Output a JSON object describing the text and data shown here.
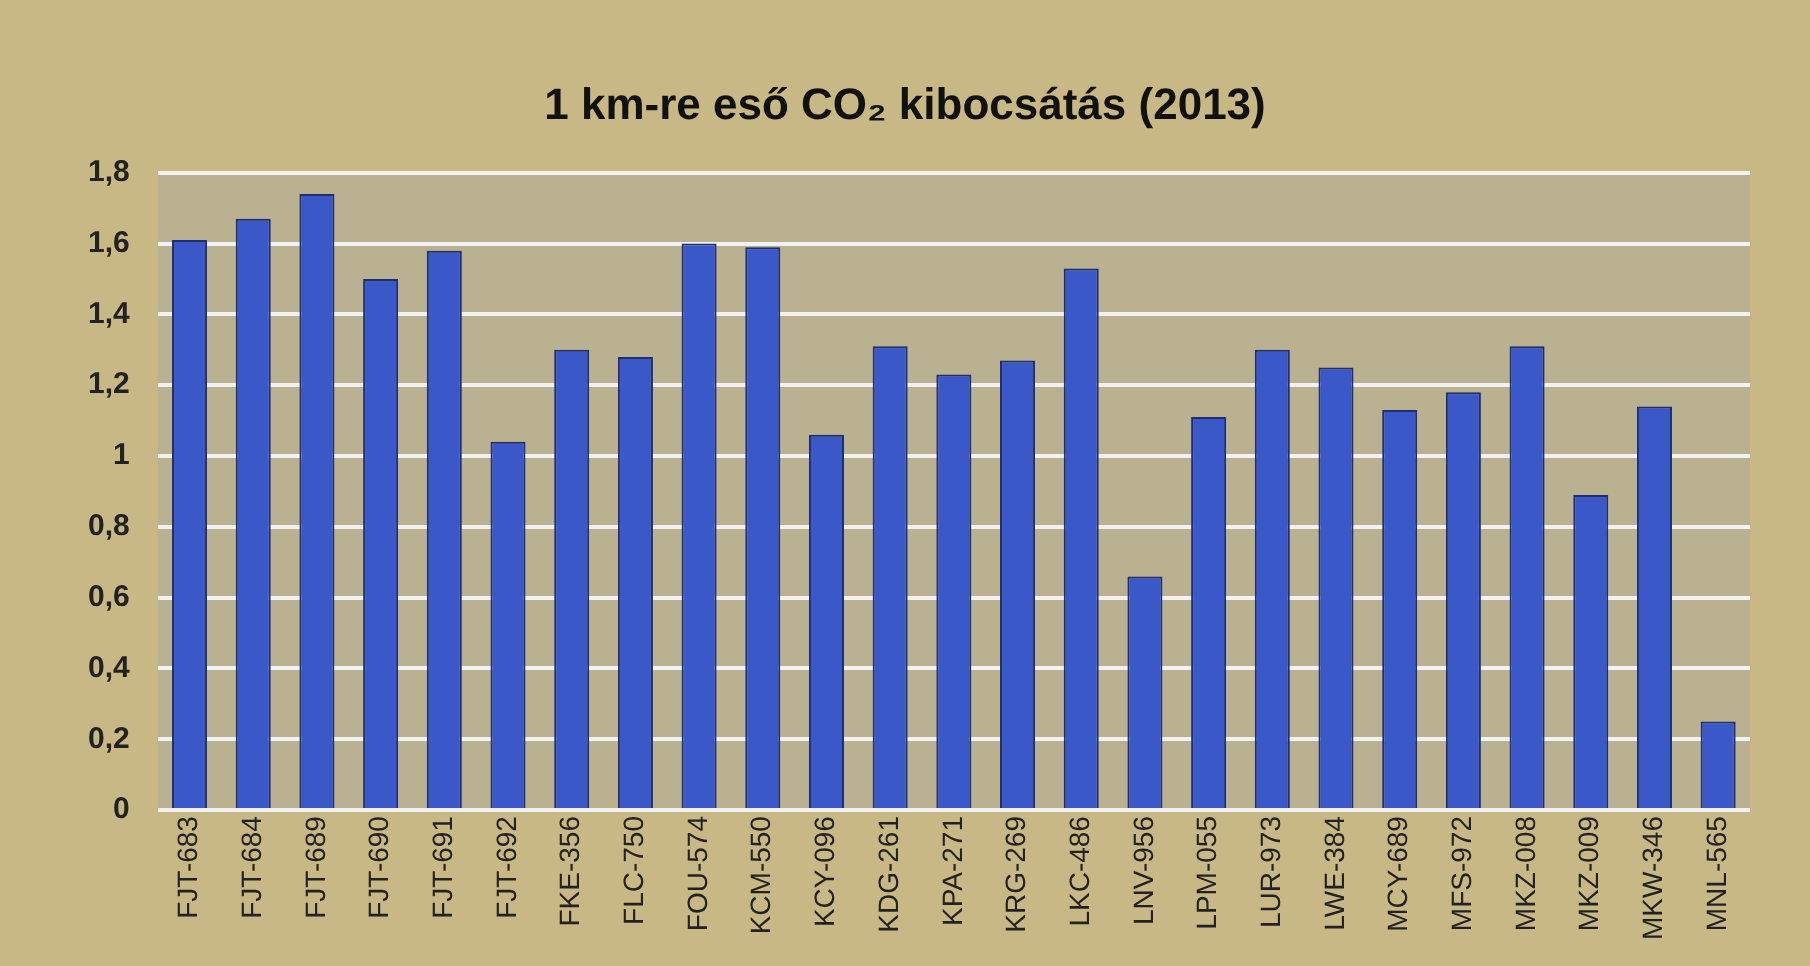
{
  "chart_data": {
    "type": "bar",
    "title": "1 km-re eső CO₂ kibocsátás (2013)",
    "categories": [
      "FJT-683",
      "FJT-684",
      "FJT-689",
      "FJT-690",
      "FJT-691",
      "FJT-692",
      "FKE-356",
      "FLC-750",
      "FOU-574",
      "KCM-550",
      "KCY-096",
      "KDG-261",
      "KPA-271",
      "KRG-269",
      "LKC-486",
      "LNV-956",
      "LPM-055",
      "LUR-973",
      "LWE-384",
      "MCY-689",
      "MFS-972",
      "MKZ-008",
      "MKZ-009",
      "MKW-346",
      "MNL-565"
    ],
    "values": [
      1.61,
      1.67,
      1.74,
      1.5,
      1.58,
      1.04,
      1.3,
      1.28,
      1.6,
      1.59,
      1.06,
      1.31,
      1.23,
      1.27,
      1.53,
      0.66,
      1.11,
      1.3,
      1.25,
      1.13,
      1.18,
      1.31,
      0.89,
      1.14,
      0.25
    ],
    "color": "#3a58c8",
    "ylim": [
      0,
      1.8
    ],
    "yticks": [
      0,
      {
        "value": 0.2,
        "label": "0,2"
      },
      {
        "value": 0.4,
        "label": "0,4"
      },
      {
        "value": 0.6,
        "label": "0,6"
      },
      {
        "value": 0.8,
        "label": "0,8"
      },
      1,
      {
        "value": 1.2,
        "label": "1,2"
      },
      {
        "value": 1.4,
        "label": "1,4"
      },
      {
        "value": 1.6,
        "label": "1,6"
      },
      {
        "value": 1.8,
        "label": "1,8"
      }
    ],
    "grid": "y",
    "legend": false
  }
}
